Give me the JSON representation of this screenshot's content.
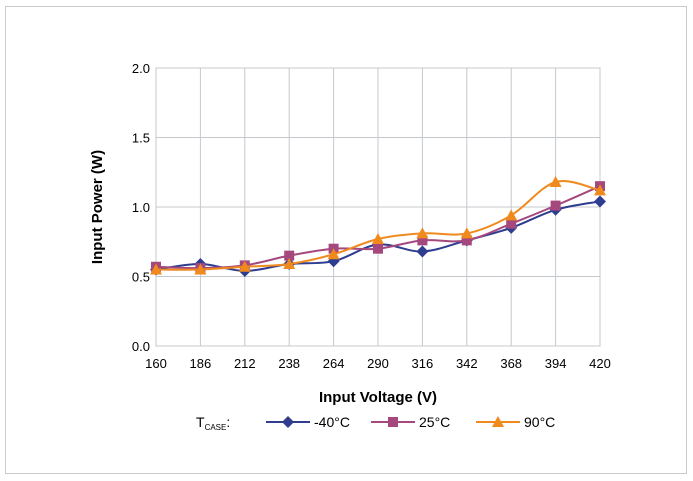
{
  "chart_data": {
    "type": "line",
    "xlabel": "Input Voltage (V)",
    "ylabel": "Input Power (W)",
    "x": [
      160,
      186,
      212,
      238,
      264,
      290,
      316,
      342,
      368,
      394,
      420
    ],
    "xlim": [
      160,
      420
    ],
    "ylim": [
      0.0,
      2.0
    ],
    "yticks": [
      "0.0",
      "0.5",
      "1.0",
      "1.5",
      "2.0"
    ],
    "xticks": [
      "160",
      "186",
      "212",
      "238",
      "264",
      "290",
      "316",
      "342",
      "368",
      "394",
      "420"
    ],
    "grid": true,
    "legend_position": "bottom",
    "legend_title": {
      "main": "T",
      "sub": "CASE",
      "suffix": ":"
    },
    "series": [
      {
        "name": "-40°C",
        "color": "#2E3D8F",
        "marker": "diamond",
        "values": [
          0.55,
          0.59,
          0.54,
          0.59,
          0.61,
          0.73,
          0.68,
          0.76,
          0.85,
          0.98,
          1.04
        ]
      },
      {
        "name": "25°C",
        "color": "#A4487E",
        "marker": "square",
        "values": [
          0.57,
          0.56,
          0.58,
          0.65,
          0.7,
          0.7,
          0.76,
          0.76,
          0.88,
          1.01,
          1.15
        ]
      },
      {
        "name": "90°C",
        "color": "#F08A1C",
        "marker": "triangle",
        "values": [
          0.55,
          0.55,
          0.57,
          0.59,
          0.66,
          0.77,
          0.81,
          0.81,
          0.94,
          1.18,
          1.12
        ]
      }
    ]
  }
}
